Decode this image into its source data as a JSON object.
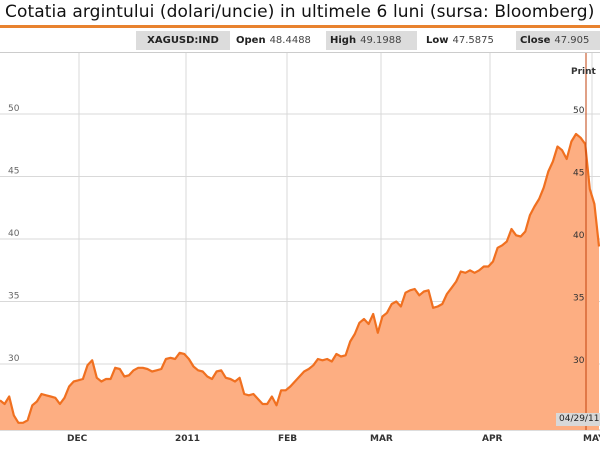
{
  "title": "Cotatia argintului (dolari/uncie) in ultimele 6 luni (sursa: Bloomberg)",
  "quote": {
    "ticker": "XAGUSD:IND",
    "open_label": "Open",
    "open_value": "48.4488",
    "high_label": "High",
    "high_value": "49.1988",
    "low_label": "Low",
    "low_value": "47.5875",
    "close_label": "Close",
    "close_value": "47.905"
  },
  "print_label": "Print",
  "current_date": "04/29/11",
  "colors": {
    "accent": "#e8822e",
    "fill": "#fdae82",
    "line": "#f07020"
  },
  "chart_data": {
    "type": "area",
    "title": "Cotatia argintului (dolari/uncie) in ultimele 6 luni (sursa: Bloomberg)",
    "xlabel": "",
    "ylabel": "",
    "ylim": [
      22.5,
      53.5
    ],
    "yticks": [
      30,
      35,
      40,
      45,
      50
    ],
    "ytick_labels": [
      "30",
      "35",
      "40",
      "45",
      "50"
    ],
    "xtick_labels": [
      "DEC",
      "2011",
      "FEB",
      "MAR",
      "APR",
      "MAY"
    ],
    "grid": true,
    "values": [
      27.1,
      26.8,
      27.4,
      25.9,
      25.3,
      25.3,
      25.5,
      26.7,
      27.0,
      27.6,
      27.5,
      27.4,
      27.3,
      26.8,
      27.3,
      28.2,
      28.6,
      28.7,
      28.8,
      29.9,
      30.3,
      28.9,
      28.6,
      28.8,
      28.8,
      29.7,
      29.6,
      29.0,
      29.1,
      29.5,
      29.7,
      29.7,
      29.6,
      29.4,
      29.5,
      29.6,
      30.4,
      30.5,
      30.4,
      30.9,
      30.8,
      30.4,
      29.8,
      29.5,
      29.4,
      29.0,
      28.8,
      29.4,
      29.5,
      28.9,
      28.8,
      28.6,
      28.9,
      27.6,
      27.5,
      27.6,
      27.2,
      26.8,
      26.8,
      27.4,
      26.7,
      27.9,
      27.9,
      28.2,
      28.6,
      29.0,
      29.4,
      29.6,
      29.9,
      30.4,
      30.3,
      30.4,
      30.2,
      30.8,
      30.6,
      30.7,
      31.8,
      32.4,
      33.3,
      33.6,
      33.2,
      34.0,
      32.5,
      33.8,
      34.1,
      34.8,
      35.0,
      34.6,
      35.7,
      35.9,
      36.0,
      35.5,
      35.8,
      35.9,
      34.5,
      34.6,
      34.8,
      35.6,
      36.1,
      36.6,
      37.4,
      37.3,
      37.5,
      37.3,
      37.5,
      37.8,
      37.8,
      38.2,
      39.3,
      39.5,
      39.8,
      40.8,
      40.3,
      40.2,
      40.6,
      41.9,
      42.6,
      43.2,
      44.1,
      45.4,
      46.2,
      47.4,
      47.1,
      46.4,
      47.8,
      48.4,
      48.1,
      47.6,
      44.0,
      42.8,
      39.4
    ],
    "last_label_date": "04/29/11"
  }
}
